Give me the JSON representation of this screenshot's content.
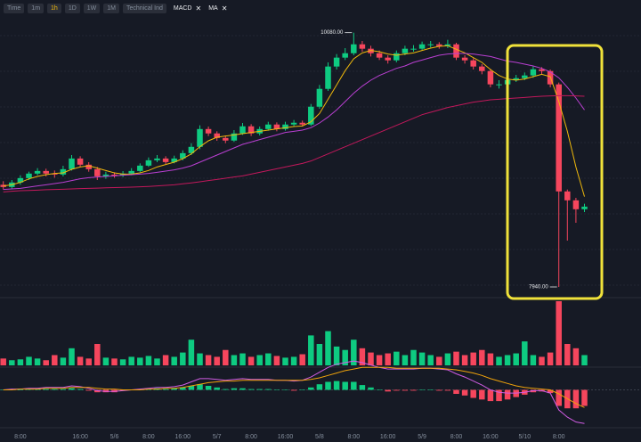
{
  "toolbar": {
    "items": [
      "Time",
      "1m",
      "1h",
      "1D",
      "1W",
      "1M",
      "Technical Ind"
    ],
    "active": 2,
    "indicators": [
      "MACD",
      "MA"
    ]
  },
  "chart_data": {
    "type": "candlestick",
    "categories": [
      null,
      null,
      "8:00",
      null,
      null,
      null,
      null,
      null,
      null,
      "16:00",
      null,
      null,
      null,
      "5/6",
      null,
      null,
      null,
      "8:00",
      null,
      null,
      null,
      "16:00",
      null,
      null,
      null,
      "5/7",
      null,
      null,
      null,
      "8:00",
      null,
      null,
      null,
      "16:00",
      null,
      null,
      null,
      "5/8",
      null,
      null,
      null,
      "8:00",
      null,
      null,
      null,
      "16:00",
      null,
      null,
      null,
      "5/9",
      null,
      null,
      null,
      "8:00",
      null,
      null,
      null,
      "16:00",
      null,
      null,
      null,
      "5/10",
      null,
      null,
      null,
      "8:00",
      null,
      null,
      null
    ],
    "open": [
      8800,
      8781,
      8819,
      8856,
      8894,
      8916,
      8894,
      8886,
      8931,
      9021,
      8969,
      8931,
      8871,
      8886,
      8878,
      8894,
      8916,
      8961,
      9006,
      9021,
      8991,
      9021,
      9066,
      9119,
      9269,
      9232,
      9194,
      9172,
      9232,
      9292,
      9232,
      9269,
      9307,
      9269,
      9307,
      9322,
      9307,
      9457,
      9607,
      9795,
      9870,
      9907,
      9982,
      9945,
      9907,
      9870,
      9847,
      9907,
      9945,
      9945,
      9982,
      9982,
      9967,
      9982,
      9870,
      9847,
      9795,
      9757,
      9645,
      9645,
      9682,
      9697,
      9720,
      9772,
      9757,
      9645,
      8744,
      8669,
      8594
    ],
    "high": [
      8830,
      8840,
      8880,
      8910,
      8940,
      8935,
      8920,
      8960,
      9050,
      9040,
      8990,
      8950,
      8910,
      8905,
      8915,
      8940,
      8980,
      9030,
      9050,
      9040,
      9045,
      9090,
      9150,
      9300,
      9290,
      9250,
      9215,
      9260,
      9320,
      9310,
      9290,
      9330,
      9325,
      9330,
      9345,
      9340,
      9480,
      9640,
      9830,
      9900,
      9950,
      10080,
      10010,
      9970,
      9930,
      9890,
      9930,
      9970,
      9975,
      10005,
      10010,
      10000,
      10020,
      9995,
      9890,
      9865,
      9815,
      9775,
      9680,
      9705,
      9725,
      9745,
      9800,
      9790,
      9770,
      9660,
      8760,
      8690,
      8640
    ],
    "low": [
      8760,
      8765,
      8800,
      8840,
      8880,
      8870,
      8860,
      8870,
      8920,
      8950,
      8910,
      8840,
      8850,
      8860,
      8865,
      8880,
      8905,
      8950,
      8990,
      8975,
      8980,
      9005,
      9050,
      9100,
      9210,
      9170,
      9150,
      9160,
      9220,
      9210,
      9215,
      9255,
      9250,
      9255,
      9290,
      9290,
      9295,
      9440,
      9590,
      9770,
      9850,
      9890,
      9920,
      9880,
      9850,
      9820,
      9830,
      9890,
      9920,
      9930,
      9955,
      9945,
      9950,
      9850,
      9820,
      9770,
      9730,
      9620,
      9610,
      9630,
      9665,
      9680,
      9700,
      9730,
      9620,
      7940,
      8330,
      8480,
      8570
    ],
    "close": [
      8781,
      8819,
      8856,
      8894,
      8916,
      8894,
      8886,
      8931,
      9021,
      8969,
      8931,
      8871,
      8886,
      8878,
      8894,
      8916,
      8961,
      9006,
      9021,
      8991,
      9021,
      9066,
      9119,
      9269,
      9232,
      9194,
      9172,
      9232,
      9292,
      9232,
      9269,
      9307,
      9269,
      9307,
      9322,
      9307,
      9457,
      9607,
      9795,
      9870,
      9907,
      9982,
      9945,
      9907,
      9870,
      9847,
      9907,
      9945,
      9945,
      9982,
      9982,
      9967,
      9982,
      9870,
      9847,
      9795,
      9757,
      9645,
      9645,
      9682,
      9697,
      9720,
      9772,
      9757,
      9645,
      8744,
      8669,
      8594,
      8616
    ],
    "up_color": "#0ecb81",
    "down_color": "#f6465d",
    "ylim": [
      7880,
      10190
    ],
    "ma": [
      {
        "color": "#f0b90b",
        "values": [
          8790,
          8800,
          8820,
          8850,
          8870,
          8885,
          8895,
          8900,
          8930,
          8950,
          8960,
          8940,
          8920,
          8900,
          8890,
          8890,
          8900,
          8920,
          8950,
          8970,
          8990,
          9020,
          9060,
          9120,
          9170,
          9200,
          9210,
          9220,
          9230,
          9240,
          9250,
          9260,
          9270,
          9280,
          9290,
          9295,
          9330,
          9400,
          9520,
          9640,
          9760,
          9860,
          9910,
          9930,
          9920,
          9900,
          9890,
          9900,
          9910,
          9930,
          9950,
          9965,
          9970,
          9940,
          9910,
          9870,
          9830,
          9770,
          9720,
          9690,
          9680,
          9690,
          9710,
          9730,
          9710,
          9500,
          9250,
          8950,
          8700
        ]
      },
      {
        "color": "#b93fd1",
        "values": [
          8760,
          8765,
          8770,
          8780,
          8790,
          8800,
          8810,
          8820,
          8835,
          8850,
          8860,
          8865,
          8870,
          8875,
          8880,
          8885,
          8890,
          8895,
          8905,
          8915,
          8925,
          8940,
          8960,
          8990,
          9020,
          9050,
          9080,
          9110,
          9140,
          9160,
          9180,
          9200,
          9220,
          9240,
          9250,
          9260,
          9280,
          9320,
          9370,
          9430,
          9500,
          9570,
          9630,
          9680,
          9720,
          9750,
          9780,
          9800,
          9830,
          9850,
          9870,
          9890,
          9900,
          9905,
          9905,
          9900,
          9890,
          9880,
          9860,
          9840,
          9830,
          9815,
          9800,
          9780,
          9750,
          9700,
          9620,
          9530,
          9430
        ]
      },
      {
        "color": "#c2185b",
        "values": [
          8740,
          8745,
          8750,
          8752,
          8755,
          8758,
          8760,
          8762,
          8765,
          8768,
          8770,
          8772,
          8774,
          8776,
          8778,
          8780,
          8783,
          8786,
          8790,
          8795,
          8800,
          8808,
          8816,
          8825,
          8835,
          8845,
          8855,
          8865,
          8875,
          8890,
          8905,
          8920,
          8935,
          8950,
          8965,
          8980,
          9000,
          9030,
          9060,
          9090,
          9120,
          9150,
          9180,
          9210,
          9240,
          9270,
          9300,
          9330,
          9360,
          9390,
          9410,
          9430,
          9450,
          9465,
          9480,
          9495,
          9505,
          9515,
          9520,
          9525,
          9530,
          9535,
          9540,
          9545,
          9548,
          9550,
          9550,
          9548,
          9545
        ]
      }
    ],
    "volume": [
      8,
      6,
      7,
      10,
      8,
      6,
      12,
      9,
      20,
      10,
      8,
      25,
      9,
      8,
      7,
      10,
      9,
      11,
      8,
      12,
      10,
      15,
      30,
      14,
      12,
      10,
      18,
      12,
      14,
      10,
      12,
      14,
      11,
      9,
      10,
      13,
      35,
      25,
      40,
      22,
      18,
      30,
      20,
      15,
      12,
      14,
      16,
      12,
      18,
      15,
      12,
      10,
      14,
      16,
      12,
      15,
      18,
      14,
      10,
      12,
      14,
      28,
      12,
      10,
      15,
      75,
      25,
      20,
      12
    ],
    "volume_ylim": [
      0,
      75
    ],
    "macd": {
      "ylim": [
        -45,
        35
      ],
      "macd_color": "#d05ce3",
      "signal_color": "#f0a30a",
      "macd": [
        0,
        1,
        1,
        2,
        2,
        3,
        3,
        3,
        5,
        4,
        2,
        -1,
        -2,
        -2,
        -1,
        0,
        1,
        2,
        3,
        3,
        4,
        6,
        10,
        14,
        14,
        13,
        12,
        13,
        14,
        13,
        13,
        13,
        12,
        12,
        11,
        12,
        16,
        22,
        28,
        32,
        34,
        36,
        34,
        31,
        28,
        26,
        26,
        26,
        26,
        27,
        27,
        26,
        25,
        20,
        16,
        11,
        6,
        0,
        -3,
        -4,
        -4,
        -3,
        -1,
        -1,
        -4,
        -25,
        -34,
        -40,
        -42
      ],
      "signal": [
        0,
        0,
        1,
        1,
        1,
        2,
        2,
        2,
        3,
        3,
        3,
        2,
        1,
        1,
        0,
        0,
        0,
        1,
        1,
        2,
        2,
        3,
        5,
        7,
        9,
        10,
        11,
        11,
        12,
        12,
        12,
        12,
        12,
        12,
        12,
        12,
        13,
        15,
        18,
        21,
        24,
        26,
        28,
        28,
        28,
        28,
        27,
        27,
        27,
        27,
        27,
        27,
        26,
        25,
        23,
        21,
        18,
        14,
        11,
        8,
        5,
        3,
        2,
        1,
        0,
        -5,
        -11,
        -17,
        -22
      ],
      "hist": [
        0,
        1,
        0,
        1,
        1,
        1,
        1,
        1,
        2,
        1,
        -1,
        -3,
        -3,
        -3,
        -1,
        0,
        1,
        1,
        2,
        1,
        2,
        3,
        5,
        7,
        5,
        3,
        1,
        2,
        2,
        1,
        1,
        1,
        0,
        0,
        -1,
        0,
        3,
        7,
        10,
        11,
        10,
        10,
        6,
        3,
        0,
        -2,
        -1,
        -1,
        -1,
        0,
        0,
        -1,
        -1,
        -5,
        -7,
        -10,
        -12,
        -14,
        -14,
        -12,
        -9,
        -6,
        -3,
        -2,
        -4,
        -20,
        -23,
        -23,
        -20
      ]
    },
    "annotations": [
      {
        "value": 10080,
        "label": "10080.00",
        "candle": 41
      },
      {
        "value": 7940,
        "label": "7940.00",
        "candle": 65
      }
    ]
  }
}
